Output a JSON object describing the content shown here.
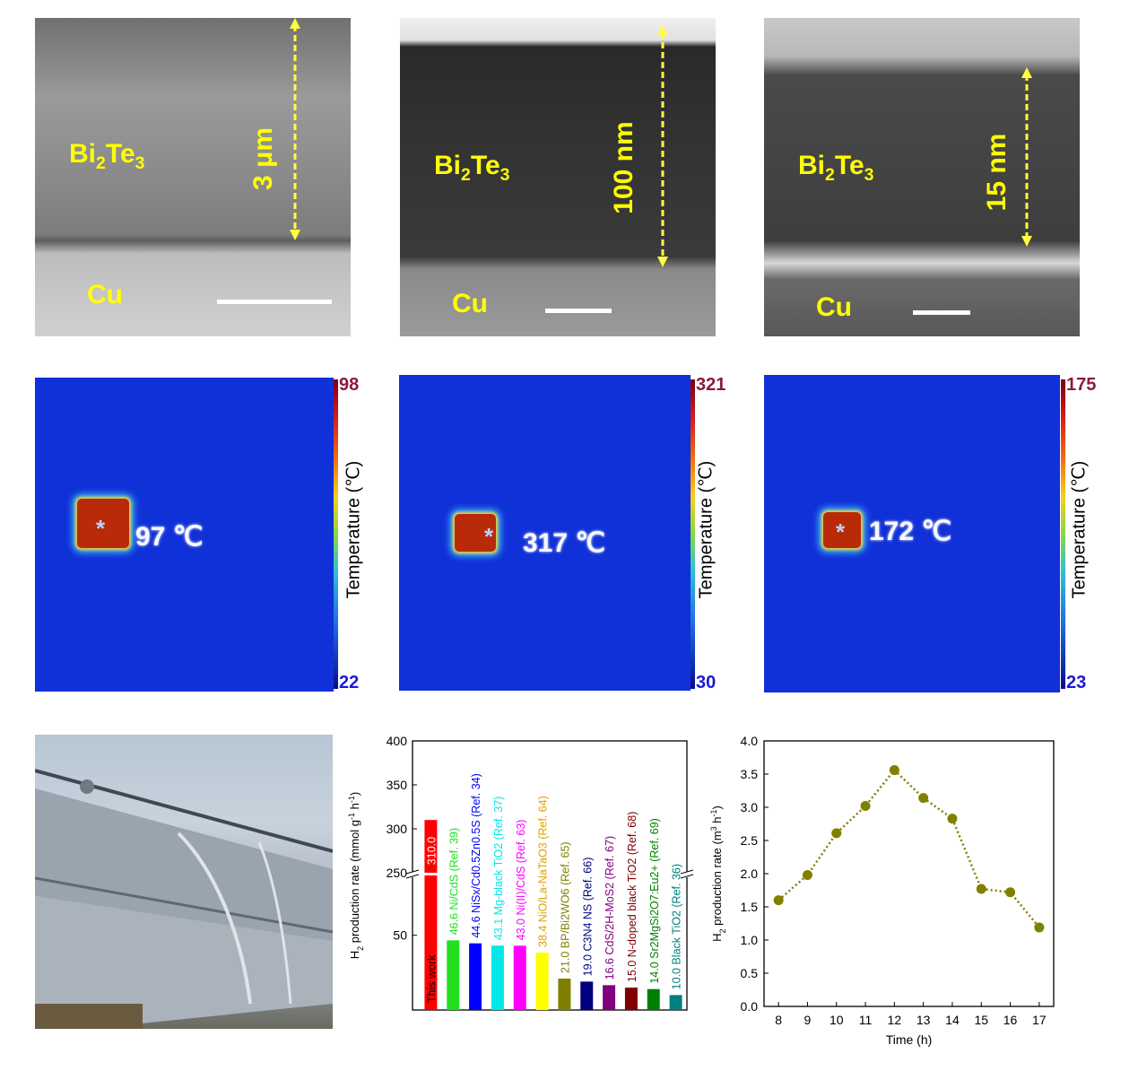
{
  "micrographs": [
    {
      "material": "Bi",
      "material_sub1": "2",
      "material_mid": "Te",
      "material_sub2": "3",
      "substrate": "Cu",
      "thickness": "3 μm"
    },
    {
      "material": "Bi",
      "material_sub1": "2",
      "material_mid": "Te",
      "material_sub2": "3",
      "substrate": "Cu",
      "thickness": "100 nm"
    },
    {
      "material": "Bi",
      "material_sub1": "2",
      "material_mid": "Te",
      "material_sub2": "3",
      "substrate": "Cu",
      "thickness": "15 nm"
    }
  ],
  "thermal": [
    {
      "max": "98",
      "min": "22",
      "spot": "97 ℃",
      "axis_title": "Temperature (℃)"
    },
    {
      "max": "321",
      "min": "30",
      "spot": "317 ℃",
      "axis_title": "Temperature (℃)"
    },
    {
      "max": "175",
      "min": "23",
      "spot": "172 ℃",
      "axis_title": "Temperature (℃)"
    }
  ],
  "marker": "*",
  "chart_data": [
    {
      "type": "bar",
      "ylabel": "H2 production rate (mmol g-1 h-1)",
      "yticks": [
        "400",
        "350",
        "300",
        "250",
        "50"
      ],
      "broken_axis": true,
      "categories": [
        "This work",
        "Ni/CdS (Ref. 39)",
        "NiSx/Cd0.5Zn0.5S (Ref. 34)",
        "Mg-black TiO2 (Ref. 37)",
        "Ni(II)/CdS (Ref. 63)",
        "NiO/La-NaTaO3 (Ref. 64)",
        "BP/Bi2WO6 (Ref. 65)",
        "C3N4 NS (Ref. 66)",
        "CdS/2H-MoS2 (Ref. 67)",
        "N-doped black TiO2 (Ref. 68)",
        "Sr2MgSi2O7:Eu2+ (Ref. 69)",
        "Black TiO2 (Ref. 36)"
      ],
      "values": [
        310.0,
        46.6,
        44.6,
        43.1,
        43.0,
        38.4,
        21.0,
        19.0,
        16.6,
        15.0,
        14.0,
        10.0
      ],
      "value_labels": [
        "310.0",
        "46.6",
        "44.6",
        "43.1",
        "43.0",
        "38.4",
        "21.0",
        "19.0",
        "16.6",
        "15.0",
        "14.0",
        "10.0"
      ],
      "colors": [
        "#ff0000",
        "#20e020",
        "#0000ff",
        "#00e8e8",
        "#ff00ff",
        "#ffff00",
        "#808000",
        "#000080",
        "#800080",
        "#800000",
        "#008000",
        "#008080"
      ]
    },
    {
      "type": "line",
      "xlabel": "Time (h)",
      "ylabel": "H2 production rate (m3 h-1)",
      "x": [
        8,
        9,
        10,
        11,
        12,
        13,
        14,
        15,
        16,
        17
      ],
      "values": [
        1.6,
        1.98,
        2.61,
        3.02,
        3.56,
        3.14,
        2.83,
        1.77,
        1.72,
        1.19
      ],
      "xlim": [
        7.5,
        17.5
      ],
      "ylim": [
        0,
        4.0
      ],
      "yticks": [
        "0.0",
        "0.5",
        "1.0",
        "1.5",
        "2.0",
        "2.5",
        "3.0",
        "3.5",
        "4.0"
      ],
      "color": "#808000"
    }
  ]
}
